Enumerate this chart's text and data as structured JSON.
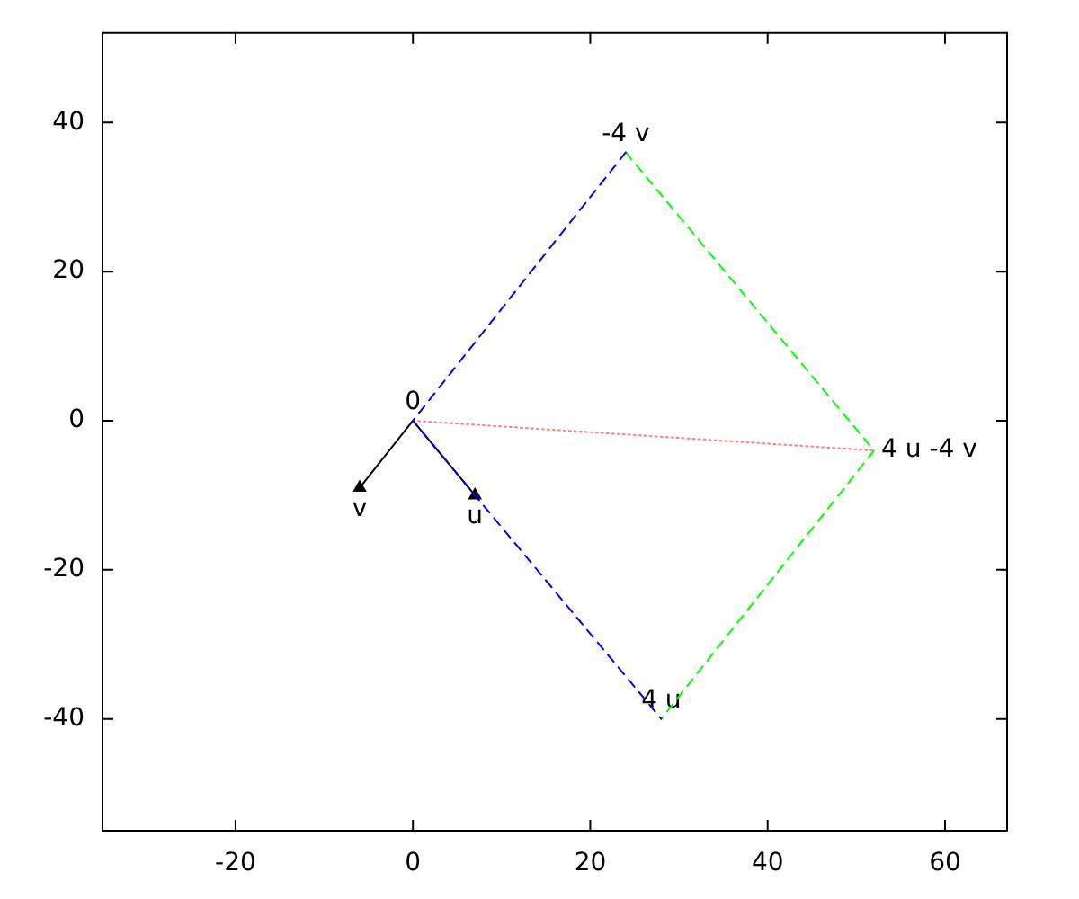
{
  "chart_data": {
    "type": "line",
    "xlim": [
      -35,
      67
    ],
    "xticks": [
      -20,
      0,
      20,
      40,
      60
    ],
    "ylim": [
      -55,
      52
    ],
    "yticks": [
      -40,
      -20,
      0,
      20,
      40
    ],
    "grid": false,
    "legend": false,
    "series": [
      {
        "color": "#0000ff",
        "line_style": "dashed",
        "marker": "none",
        "x": [
          24,
          0,
          28
        ],
        "values": [
          36,
          0,
          -40
        ]
      },
      {
        "color": "#00ff00",
        "line_style": "dashed",
        "marker": "none",
        "x": [
          24,
          52,
          28
        ],
        "values": [
          36,
          -4,
          -40
        ]
      },
      {
        "color": "#ff8080",
        "line_style": "dotted",
        "marker": "none",
        "x": [
          0,
          52
        ],
        "values": [
          0,
          -4
        ]
      },
      {
        "color": "#000000",
        "line_style": "solid",
        "marker": "triangle",
        "x": [
          0,
          7
        ],
        "values": [
          0,
          -10
        ]
      },
      {
        "color": "#000000",
        "line_style": "solid",
        "marker": "triangle",
        "x": [
          0,
          -6
        ],
        "values": [
          0,
          -9
        ]
      }
    ],
    "annotations": [
      {
        "text": "0",
        "x": 0,
        "y": 0
      },
      {
        "text": "-4 v",
        "x": 24,
        "y": 36
      },
      {
        "text": "4 u",
        "x": 28,
        "y": -40
      },
      {
        "text": "4 u -4 v",
        "x": 52,
        "y": -4
      },
      {
        "text": "u",
        "x": 7,
        "y": -10
      },
      {
        "text": "v",
        "x": -6,
        "y": -9
      }
    ]
  }
}
